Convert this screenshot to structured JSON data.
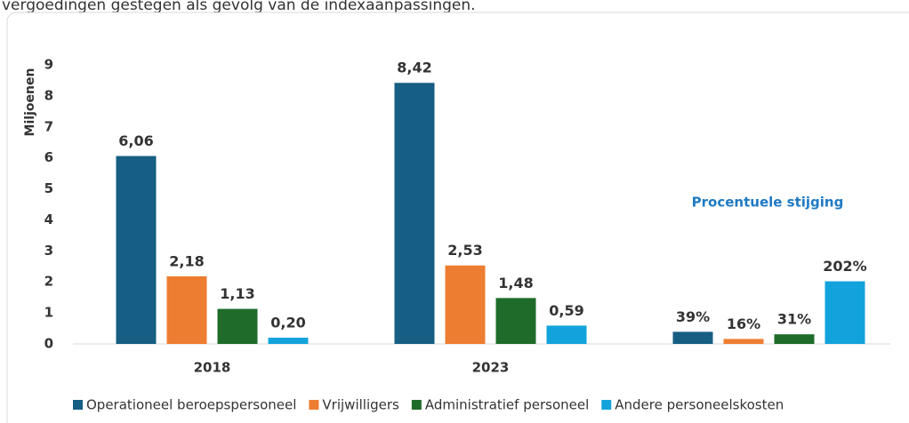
{
  "intro_text": "vergoedingen gestegen als gevolg van de indexaanpassingen.",
  "chart_data": {
    "type": "bar",
    "y_label": "Miljoenen",
    "annotation": "Procentuele stijging",
    "categories": [
      "2018",
      "2023",
      null
    ],
    "series": [
      {
        "name": "Operationeel beroepspersoneel",
        "color": "#165e83",
        "values": [
          6.06,
          8.42,
          0.39
        ],
        "value_labels": [
          "6,06",
          "8,42",
          "39%"
        ]
      },
      {
        "name": "Vrijwilligers",
        "color": "#ed7d31",
        "values": [
          2.18,
          2.53,
          0.16
        ],
        "value_labels": [
          "2,18",
          "2,53",
          "16%"
        ]
      },
      {
        "name": "Administratief personeel",
        "color": "#1e6b2a",
        "values": [
          1.13,
          1.48,
          0.31
        ],
        "value_labels": [
          "1,13",
          "1,48",
          "31%"
        ]
      },
      {
        "name": "Andere personeelskosten",
        "color": "#13a3dc",
        "values": [
          0.2,
          0.59,
          2.02
        ],
        "value_labels": [
          "0,20",
          "0,59",
          "202%"
        ]
      }
    ],
    "ylim": [
      0,
      9
    ],
    "yticks": [
      0,
      1,
      2,
      3,
      4,
      5,
      6,
      7,
      8,
      9
    ],
    "grid": false,
    "legend": "bottom"
  }
}
